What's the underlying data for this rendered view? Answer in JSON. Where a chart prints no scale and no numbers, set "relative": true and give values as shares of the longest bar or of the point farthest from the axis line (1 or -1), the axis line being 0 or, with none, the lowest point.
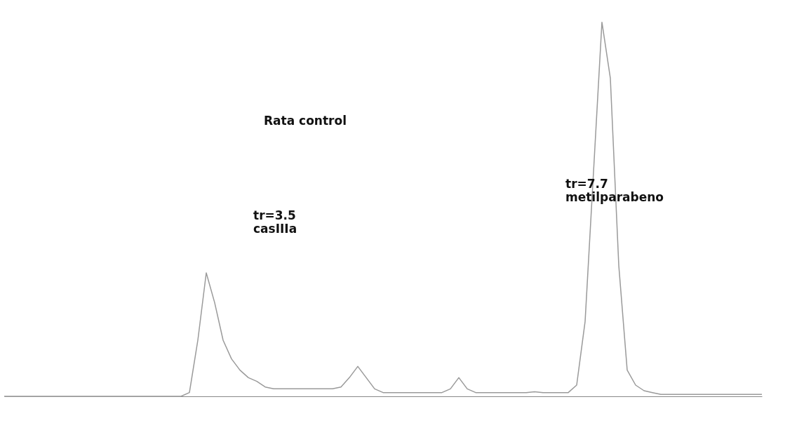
{
  "chart_data": {
    "type": "line",
    "relative": true,
    "categories": [
      null,
      null,
      null,
      null,
      null,
      null,
      null,
      null,
      null,
      null,
      null,
      null,
      null,
      null,
      null,
      null,
      null,
      null,
      null,
      null,
      null,
      null,
      null,
      null,
      null,
      null,
      null,
      null,
      null,
      null,
      null,
      null,
      null,
      null,
      null,
      null,
      null,
      null,
      null,
      null,
      null,
      null,
      null,
      null,
      null,
      null,
      null,
      null,
      null,
      null,
      null,
      null,
      null,
      null,
      null,
      null,
      null,
      null,
      null,
      null,
      null,
      null,
      null,
      null,
      null,
      null,
      null,
      null,
      null,
      null,
      null,
      null,
      null,
      null,
      null,
      null,
      null,
      null,
      null,
      null,
      null,
      null,
      null,
      null,
      null,
      null,
      null,
      null,
      null,
      null,
      null
    ],
    "series": [
      {
        "color": "#9a9a9a",
        "values": [
          0,
          0,
          0,
          0,
          0,
          0,
          0,
          0,
          0,
          0,
          0,
          0,
          0,
          0,
          0,
          0,
          0,
          0,
          0,
          0,
          0,
          0,
          0.01,
          0.15,
          0.33,
          0.25,
          0.15,
          0.1,
          0.07,
          0.05,
          0.04,
          0.025,
          0.02,
          0.02,
          0.02,
          0.02,
          0.02,
          0.02,
          0.02,
          0.02,
          0.025,
          0.05,
          0.08,
          0.05,
          0.02,
          0.01,
          0.01,
          0.01,
          0.01,
          0.01,
          0.01,
          0.01,
          0.01,
          0.02,
          0.05,
          0.02,
          0.01,
          0.01,
          0.01,
          0.01,
          0.01,
          0.01,
          0.01,
          0.012,
          0.01,
          0.01,
          0.01,
          0.01,
          0.03,
          0.2,
          0.6,
          1,
          0.85,
          0.35,
          0.07,
          0.03,
          0.015,
          0.01,
          0.005,
          0.005,
          0.005,
          0.005,
          0.005,
          0.005,
          0.005,
          0.005,
          0.005,
          0.005,
          0.005,
          0.005,
          0.005
        ]
      }
    ],
    "annotations": [
      "Rata control",
      "tr=3.5\ncasIIIa",
      "tr=7.7\nmetilparabeno"
    ]
  }
}
